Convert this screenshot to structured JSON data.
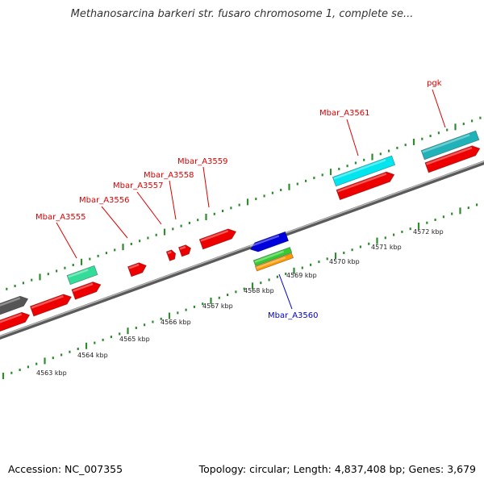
{
  "title": "Methanosarcina barkeri str. fusaro chromosome 1, complete se...",
  "footer": {
    "accession": "Accession: NC_007355",
    "summary": "Topology: circular; Length: 4,837,408 bp; Genes: 3,679"
  },
  "colors": {
    "backbone": "#808080",
    "forward_tick": "#2e8b2e",
    "reverse_tick": "#2e8b2e",
    "label_forward": "#dd0000",
    "label_reverse": "#0000cc",
    "gene_red": "#ee0000",
    "gene_cyan": "#00e5ee",
    "gene_teal": "#20b2b8",
    "gene_aqua": "#33dd99",
    "gene_gray": "#555555",
    "gene_blue": "#0000dd",
    "gene_green": "#33cc33",
    "gene_orange": "#ff9900"
  },
  "scale_labels": [
    "4563 kbp",
    "4564 kbp",
    "4565 kbp",
    "4566 kbp",
    "4567 kbp",
    "4568 kbp",
    "4569 kbp",
    "4570 kbp",
    "4571 kbp",
    "4572 kbp"
  ],
  "gene_labels": [
    {
      "name": "Mbar_A3555",
      "strand": "forward"
    },
    {
      "name": "Mbar_A3556",
      "strand": "forward"
    },
    {
      "name": "Mbar_A3557",
      "strand": "forward"
    },
    {
      "name": "Mbar_A3558",
      "strand": "forward"
    },
    {
      "name": "Mbar_A3559",
      "strand": "forward"
    },
    {
      "name": "Mbar_A3561",
      "strand": "forward"
    },
    {
      "name": "pgk",
      "strand": "forward"
    },
    {
      "name": "Mbar_A3560",
      "strand": "reverse"
    }
  ]
}
